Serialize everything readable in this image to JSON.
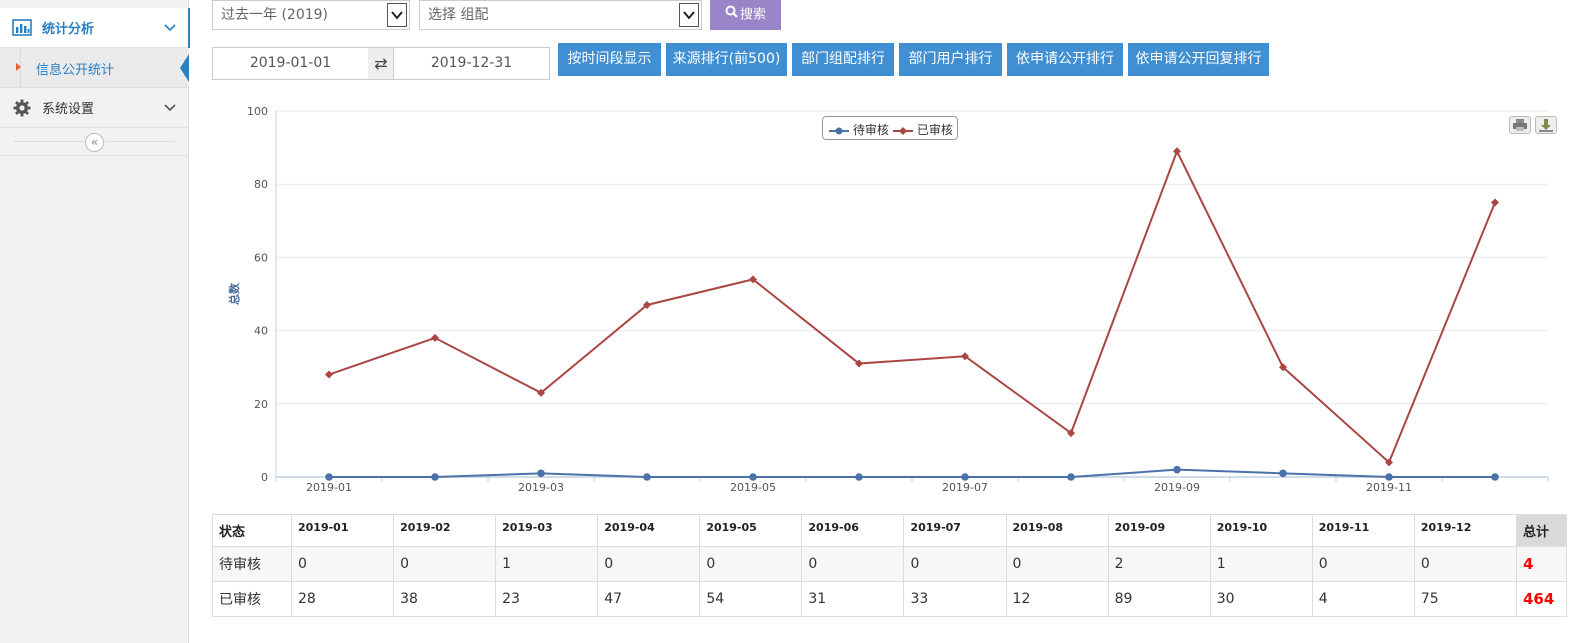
{
  "sidebar": {
    "groups": [
      {
        "label": "统计分析",
        "icon": "bar-chart-icon"
      },
      {
        "label": "系统设置",
        "icon": "gear-icon"
      }
    ],
    "sub_item": "信息公开统计"
  },
  "toolbar": {
    "period_select": "过去一年 (2019)",
    "group_select_placeholder": "选择 组配",
    "search_label": "搜索",
    "date_from": "2019-01-01",
    "date_to": "2019-12-31",
    "swap_icon": "⇄",
    "buttons": [
      "按时间段显示",
      "来源排行(前500)",
      "部门组配排行",
      "部门用户排行",
      "依申请公开排行",
      "依申请公开回复排行"
    ]
  },
  "chart_data": {
    "type": "line",
    "categories": [
      "2019-01",
      "2019-02",
      "2019-03",
      "2019-04",
      "2019-05",
      "2019-06",
      "2019-07",
      "2019-08",
      "2019-09",
      "2019-10",
      "2019-11",
      "2019-12"
    ],
    "x_tick_labels": [
      "2019-01",
      "2019-03",
      "2019-05",
      "2019-07",
      "2019-09",
      "2019-11"
    ],
    "ylabel": "总数",
    "ylim": [
      0,
      100
    ],
    "y_ticks": [
      "0",
      "20",
      "40",
      "60",
      "80",
      "100"
    ],
    "legend_position": "top-center",
    "series": [
      {
        "name": "待审核",
        "color": "#4a72a8",
        "marker": "circle",
        "values": [
          0,
          0,
          1,
          0,
          0,
          0,
          0,
          0,
          2,
          1,
          0,
          0
        ]
      },
      {
        "name": "已审核",
        "color": "#aa4643",
        "marker": "diamond",
        "values": [
          28,
          38,
          23,
          47,
          54,
          31,
          33,
          12,
          89,
          30,
          4,
          75
        ]
      }
    ]
  },
  "table": {
    "header_state": "状态",
    "header_total": "总计",
    "months": [
      "2019-01",
      "2019-02",
      "2019-03",
      "2019-04",
      "2019-05",
      "2019-06",
      "2019-07",
      "2019-08",
      "2019-09",
      "2019-10",
      "2019-11",
      "2019-12"
    ],
    "rows": [
      {
        "label": "待审核",
        "values": [
          "0",
          "0",
          "1",
          "0",
          "0",
          "0",
          "0",
          "0",
          "2",
          "1",
          "0",
          "0"
        ],
        "total": "4"
      },
      {
        "label": "已审核",
        "values": [
          "28",
          "38",
          "23",
          "47",
          "54",
          "31",
          "33",
          "12",
          "89",
          "30",
          "4",
          "75"
        ],
        "total": "464"
      }
    ]
  }
}
